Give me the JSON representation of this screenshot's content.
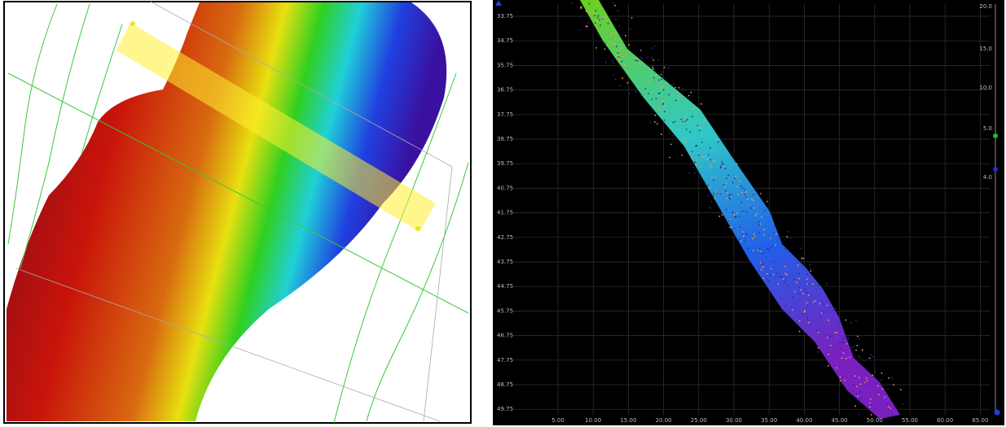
{
  "profile_panel": {
    "y_axis_labels": [
      "33.75",
      "34.75",
      "35.75",
      "36.75",
      "37.75",
      "38.75",
      "39.75",
      "40.75",
      "41.75",
      "42.75",
      "43.75",
      "44.75",
      "45.75",
      "46.75",
      "47.75",
      "48.75",
      "49.75"
    ],
    "x_axis_labels": [
      "5.00",
      "10.00",
      "15.00",
      "20.00",
      "25.00",
      "30.00",
      "35.00",
      "40.00",
      "45.00",
      "50.00",
      "55.00",
      "60.00",
      "65.00"
    ],
    "scale_labels": [
      "20.0",
      "15.0",
      "10.0",
      "5.0",
      "4.0"
    ]
  }
}
